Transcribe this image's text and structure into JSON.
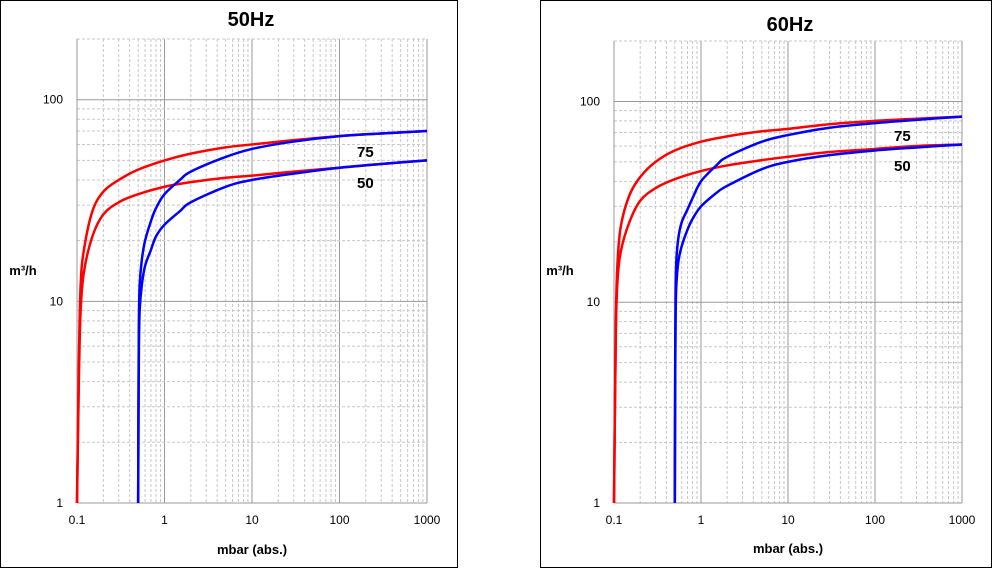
{
  "chart_data": [
    {
      "type": "line",
      "title": "50Hz",
      "xlabel": "mbar (abs.)",
      "ylabel": "m³/h",
      "x_scale": "log",
      "y_scale": "log",
      "xlim": [
        0.1,
        1000
      ],
      "ylim": [
        1,
        200
      ],
      "x_ticks": [
        "0.1",
        "1",
        "10",
        "100",
        "1000"
      ],
      "y_ticks": [
        "1",
        "10",
        "100"
      ],
      "grid": true,
      "series": [
        {
          "name": "75",
          "color": "#ff0000",
          "x": [
            0.1,
            0.105,
            0.11,
            0.12,
            0.15,
            0.2,
            0.3,
            0.5,
            1,
            2,
            5,
            10,
            30,
            100,
            300,
            1000
          ],
          "y": [
            1,
            5,
            12,
            18,
            28,
            35,
            40,
            45,
            50,
            54,
            58,
            60,
            63,
            66,
            68,
            70
          ]
        },
        {
          "name": "50",
          "color": "#ff0000",
          "x": [
            0.1,
            0.105,
            0.11,
            0.12,
            0.15,
            0.2,
            0.3,
            0.5,
            1,
            2,
            5,
            10,
            30,
            100,
            300,
            1000
          ],
          "y": [
            1,
            4,
            9,
            14,
            21,
            27,
            31,
            34,
            37,
            39,
            41,
            42,
            44,
            46,
            48,
            50
          ]
        },
        {
          "name": "75",
          "color": "#0000ff",
          "x": [
            0.5,
            0.505,
            0.51,
            0.52,
            0.55,
            0.6,
            0.7,
            0.8,
            1,
            1.5,
            2,
            5,
            10,
            30,
            100,
            300,
            1000
          ],
          "y": [
            1,
            4,
            8,
            12,
            16,
            20,
            25,
            29,
            34,
            40,
            44,
            52,
            57,
            62,
            66,
            68,
            70
          ]
        },
        {
          "name": "50",
          "color": "#0000ff",
          "x": [
            0.5,
            0.505,
            0.51,
            0.52,
            0.55,
            0.6,
            0.7,
            0.8,
            1,
            1.5,
            2,
            5,
            10,
            30,
            100,
            300,
            1000
          ],
          "y": [
            1,
            3,
            6,
            9,
            12,
            15,
            18,
            21,
            24,
            28,
            31,
            37,
            40,
            43,
            46,
            48,
            50
          ]
        }
      ]
    },
    {
      "type": "line",
      "title": "60Hz",
      "xlabel": "mbar (abs.)",
      "ylabel": "m³/h",
      "x_scale": "log",
      "y_scale": "log",
      "xlim": [
        0.1,
        1000
      ],
      "ylim": [
        1,
        200
      ],
      "x_ticks": [
        "0.1",
        "1",
        "10",
        "100",
        "1000"
      ],
      "y_ticks": [
        "1",
        "10",
        "100"
      ],
      "grid": true,
      "series": [
        {
          "name": "75",
          "color": "#ff0000",
          "x": [
            0.1,
            0.105,
            0.11,
            0.12,
            0.15,
            0.2,
            0.3,
            0.5,
            1,
            2,
            5,
            10,
            30,
            100,
            300,
            1000
          ],
          "y": [
            1,
            8,
            16,
            24,
            34,
            42,
            50,
            57,
            63,
            67,
            71,
            73,
            77,
            80,
            82,
            84
          ]
        },
        {
          "name": "50",
          "color": "#ff0000",
          "x": [
            0.1,
            0.105,
            0.11,
            0.12,
            0.15,
            0.2,
            0.3,
            0.5,
            1,
            2,
            5,
            10,
            30,
            100,
            300,
            1000
          ],
          "y": [
            1,
            7,
            13,
            18,
            25,
            32,
            37,
            41,
            45,
            48,
            51,
            53,
            56,
            58,
            60,
            61
          ]
        },
        {
          "name": "75",
          "color": "#0000ff",
          "x": [
            0.5,
            0.505,
            0.51,
            0.52,
            0.55,
            0.6,
            0.7,
            0.8,
            1,
            1.5,
            2,
            5,
            10,
            30,
            100,
            300,
            1000
          ],
          "y": [
            1,
            5,
            11,
            16,
            21,
            25,
            29,
            33,
            40,
            48,
            53,
            63,
            68,
            74,
            78,
            81,
            84
          ]
        },
        {
          "name": "50",
          "color": "#0000ff",
          "x": [
            0.5,
            0.505,
            0.51,
            0.52,
            0.55,
            0.6,
            0.7,
            0.8,
            1,
            1.5,
            2,
            5,
            10,
            30,
            100,
            300,
            1000
          ],
          "y": [
            1,
            4,
            8,
            12,
            16,
            19,
            23,
            26,
            30,
            35,
            38,
            46,
            50,
            54,
            57,
            59,
            61
          ]
        }
      ]
    }
  ]
}
